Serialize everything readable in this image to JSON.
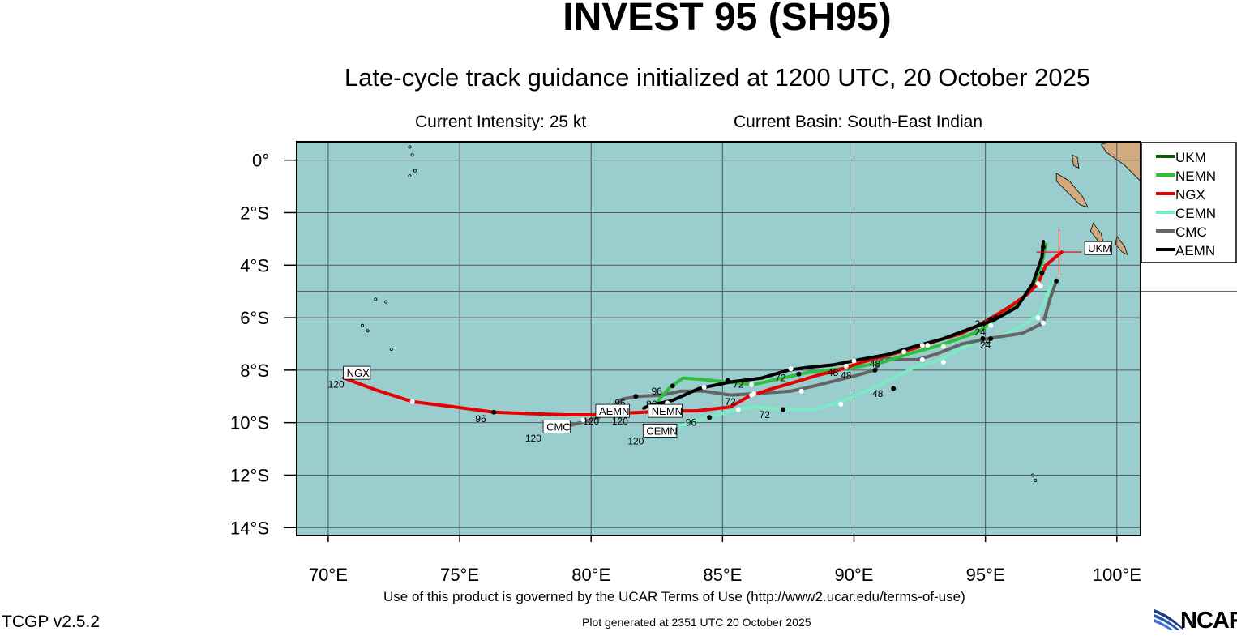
{
  "header": {
    "title": "INVEST 95 (SH95)",
    "subtitle": "Late-cycle track guidance initialized at 1200 UTC, 20 October 2025",
    "intensity": "Current Intensity: 25 kt",
    "basin": "Current Basin: South-East Indian"
  },
  "footer": {
    "terms": "Use of this product is governed by the UCAR Terms of Use (http://www2.ucar.edu/terms-of-use)",
    "generated": "Plot generated at 2351 UTC   20 October 2025",
    "version": "TCGP v2.5.2",
    "logo": "NCAR"
  },
  "chart_data": {
    "type": "map-tracks",
    "xlim": [
      68.8,
      100.9
    ],
    "ylim": [
      -14.3,
      0.7
    ],
    "x_ticks": [
      {
        "value": 70,
        "label": "70°E"
      },
      {
        "value": 75,
        "label": "75°E"
      },
      {
        "value": 80,
        "label": "80°E"
      },
      {
        "value": 85,
        "label": "85°E"
      },
      {
        "value": 90,
        "label": "90°E"
      },
      {
        "value": 95,
        "label": "95°E"
      },
      {
        "value": 100,
        "label": "100°E"
      }
    ],
    "y_ticks": [
      {
        "value": 0,
        "label": "0°"
      },
      {
        "value": -2,
        "label": "2°S"
      },
      {
        "value": -4,
        "label": "4°S"
      },
      {
        "value": -6,
        "label": "6°S"
      },
      {
        "value": -8,
        "label": "8°S"
      },
      {
        "value": -10,
        "label": "10°S"
      },
      {
        "value": -12,
        "label": "12°S"
      },
      {
        "value": -14,
        "label": "14°S"
      }
    ],
    "grid": true,
    "legend_position": "top-right",
    "current_position": {
      "lon": 97.8,
      "lat": -3.5
    },
    "colors": {
      "ocean": "#99cdce",
      "land": "#d1aa7f",
      "grid": "#555555",
      "UKM": "#0a5a0a",
      "NEMN": "#2fbf3b",
      "NGX": "#e60000",
      "CEMN": "#7deac6",
      "CMC": "#646464",
      "AEMN": "#000000"
    },
    "series": [
      {
        "name": "UKM",
        "color_key": "UKM",
        "points": [
          [
            97.8,
            -3.5
          ]
        ],
        "hour_labels": [],
        "end_label": {
          "lon": 98.9,
          "lat": -3.35,
          "text": "UKM"
        }
      },
      {
        "name": "NEMN",
        "color_key": "NEMN",
        "points": [
          [
            97.3,
            -3.2
          ],
          [
            97.15,
            -3.9
          ],
          [
            96.9,
            -4.6
          ],
          [
            96.4,
            -5.3
          ],
          [
            95.6,
            -5.9
          ],
          [
            94.8,
            -6.5
          ],
          [
            94.0,
            -6.8
          ],
          [
            93.1,
            -7.1
          ],
          [
            92.0,
            -7.4
          ],
          [
            91.1,
            -7.7
          ],
          [
            90.0,
            -7.9
          ],
          [
            89.0,
            -8.0
          ],
          [
            88.2,
            -8.1
          ],
          [
            87.3,
            -8.3
          ],
          [
            86.2,
            -8.55
          ],
          [
            85.1,
            -8.45
          ],
          [
            84.2,
            -8.35
          ],
          [
            83.5,
            -8.3
          ],
          [
            83.0,
            -8.65
          ],
          [
            82.6,
            -9.1
          ],
          [
            82.4,
            -9.5
          ],
          [
            82.3,
            -9.75
          ]
        ],
        "dots": [
          [
            97.2,
            -3.3
          ],
          [
            95.2,
            -6.3
          ],
          [
            92.8,
            -7.05
          ],
          [
            89.7,
            -7.85
          ],
          [
            87.9,
            -8.15
          ],
          [
            86.1,
            -8.55
          ],
          [
            83.1,
            -8.6
          ],
          [
            82.4,
            -9.5
          ]
        ],
        "dot_colors": [
          "#000",
          "#fff",
          "#fff",
          "#fff",
          "#000",
          "#fff",
          "#000",
          "#fff"
        ],
        "hour_labels": [
          {
            "lon": 94.8,
            "lat": -6.55,
            "text": "24"
          },
          {
            "lon": 87.2,
            "lat": -8.3,
            "text": "72"
          },
          {
            "lon": 82.5,
            "lat": -8.8,
            "text": "96"
          }
        ],
        "end_label": {
          "lon": 82.3,
          "lat": -9.55,
          "text": "NEMN"
        },
        "end_hour": {
          "lon": 81.1,
          "lat": -9.95,
          "text": "120"
        }
      },
      {
        "name": "NGX",
        "color_key": "NGX",
        "points": [
          [
            97.9,
            -3.5
          ],
          [
            97.3,
            -4.0
          ],
          [
            97.0,
            -4.7
          ],
          [
            96.6,
            -5.1
          ],
          [
            95.9,
            -5.6
          ],
          [
            94.9,
            -6.2
          ],
          [
            94.1,
            -6.6
          ],
          [
            93.1,
            -6.9
          ],
          [
            92.2,
            -7.2
          ],
          [
            91.2,
            -7.45
          ],
          [
            90.3,
            -7.7
          ],
          [
            89.4,
            -8.0
          ],
          [
            88.6,
            -8.2
          ],
          [
            87.6,
            -8.5
          ],
          [
            86.9,
            -8.7
          ],
          [
            86.0,
            -9.0
          ],
          [
            85.3,
            -9.4
          ],
          [
            84.0,
            -9.55
          ],
          [
            83.0,
            -9.55
          ],
          [
            82.0,
            -9.6
          ],
          [
            81.0,
            -9.65
          ],
          [
            80.1,
            -9.7
          ],
          [
            79.0,
            -9.7
          ],
          [
            77.5,
            -9.65
          ],
          [
            76.3,
            -9.6
          ],
          [
            74.8,
            -9.4
          ],
          [
            73.2,
            -9.2
          ],
          [
            71.8,
            -8.75
          ],
          [
            70.6,
            -8.3
          ]
        ],
        "dots": [
          [
            97.0,
            -4.7
          ],
          [
            95.2,
            -6.05
          ],
          [
            91.9,
            -7.3
          ],
          [
            86.1,
            -8.95
          ],
          [
            83.0,
            -9.55
          ],
          [
            76.3,
            -9.6
          ],
          [
            73.2,
            -9.2
          ]
        ],
        "dot_colors": [
          "#fff",
          "#000",
          "#fff",
          "#fff",
          "#000",
          "#000",
          "#fff"
        ],
        "hour_labels": [
          {
            "lon": 89.2,
            "lat": -8.1,
            "text": "48"
          },
          {
            "lon": 85.3,
            "lat": -9.2,
            "text": "72"
          },
          {
            "lon": 75.8,
            "lat": -9.85,
            "text": "96"
          }
        ],
        "end_label": {
          "lon": 70.7,
          "lat": -8.1,
          "text": "NGX"
        },
        "end_hour": {
          "lon": 70.3,
          "lat": -8.55,
          "text": "120"
        }
      },
      {
        "name": "CEMN",
        "color_key": "CEMN",
        "points": [
          [
            97.55,
            -4.6
          ],
          [
            97.3,
            -5.3
          ],
          [
            97.0,
            -5.9
          ],
          [
            96.4,
            -6.3
          ],
          [
            95.5,
            -6.75
          ],
          [
            94.8,
            -6.9
          ],
          [
            94.0,
            -7.2
          ],
          [
            93.3,
            -7.6
          ],
          [
            92.3,
            -7.9
          ],
          [
            91.5,
            -8.3
          ],
          [
            90.7,
            -8.7
          ],
          [
            89.5,
            -9.2
          ],
          [
            88.5,
            -9.5
          ],
          [
            87.3,
            -9.5
          ],
          [
            86.2,
            -9.4
          ],
          [
            85.6,
            -9.5
          ],
          [
            84.8,
            -9.7
          ],
          [
            83.9,
            -9.95
          ],
          [
            83.2,
            -10.2
          ],
          [
            82.5,
            -10.35
          ],
          [
            82.3,
            -10.4
          ]
        ],
        "dots": [
          [
            97.1,
            -4.8
          ],
          [
            97.0,
            -6.0
          ],
          [
            94.9,
            -6.8
          ],
          [
            93.4,
            -7.7
          ],
          [
            91.5,
            -8.7
          ],
          [
            89.5,
            -9.3
          ],
          [
            87.3,
            -9.5
          ],
          [
            85.6,
            -9.5
          ],
          [
            84.5,
            -9.8
          ],
          [
            83.1,
            -10.2
          ]
        ],
        "dot_colors": [
          "#fff",
          "#fff",
          "#000",
          "#fff",
          "#000",
          "#fff",
          "#000",
          "#fff",
          "#000",
          "#fff"
        ],
        "hour_labels": [
          {
            "lon": 95.0,
            "lat": -7.05,
            "text": "24"
          },
          {
            "lon": 90.9,
            "lat": -8.9,
            "text": "48"
          },
          {
            "lon": 86.6,
            "lat": -9.7,
            "text": "72"
          },
          {
            "lon": 83.8,
            "lat": -10.0,
            "text": "96"
          }
        ],
        "end_label": {
          "lon": 82.1,
          "lat": -10.3,
          "text": "CEMN"
        },
        "end_hour": {
          "lon": 81.7,
          "lat": -10.7,
          "text": "120"
        }
      },
      {
        "name": "CMC",
        "color_key": "CMC",
        "points": [
          [
            97.7,
            -4.6
          ],
          [
            97.45,
            -5.3
          ],
          [
            97.2,
            -6.2
          ],
          [
            96.4,
            -6.6
          ],
          [
            95.7,
            -6.7
          ],
          [
            95.1,
            -6.8
          ],
          [
            94.1,
            -7.0
          ],
          [
            93.1,
            -7.4
          ],
          [
            92.4,
            -7.6
          ],
          [
            91.6,
            -7.6
          ],
          [
            91.1,
            -7.5
          ],
          [
            90.8,
            -8.0
          ],
          [
            90.1,
            -8.2
          ],
          [
            89.3,
            -8.4
          ],
          [
            88.5,
            -8.6
          ],
          [
            87.6,
            -8.8
          ],
          [
            86.2,
            -8.9
          ],
          [
            85.3,
            -8.95
          ],
          [
            84.3,
            -8.8
          ],
          [
            83.4,
            -8.8
          ],
          [
            82.7,
            -8.95
          ],
          [
            81.8,
            -9.0
          ],
          [
            81.2,
            -9.1
          ],
          [
            80.8,
            -9.4
          ],
          [
            80.3,
            -9.8
          ],
          [
            79.6,
            -10.0
          ],
          [
            78.8,
            -10.2
          ],
          [
            78.3,
            -10.3
          ]
        ],
        "dots": [
          [
            97.7,
            -4.6
          ],
          [
            97.2,
            -6.2
          ],
          [
            95.2,
            -6.8
          ],
          [
            93.4,
            -7.1
          ],
          [
            92.6,
            -7.6
          ],
          [
            90.8,
            -8.0
          ],
          [
            88.0,
            -8.8
          ],
          [
            86.2,
            -8.9
          ],
          [
            81.7,
            -9.0
          ],
          [
            79.7,
            -9.9
          ]
        ],
        "dot_colors": [
          "#000",
          "#fff",
          "#000",
          "#fff",
          "#fff",
          "#000",
          "#fff",
          "#fff",
          "#000",
          "#fff"
        ],
        "hour_labels": [
          {
            "lon": 95.0,
            "lat": -6.9,
            "text": "24"
          },
          {
            "lon": 89.7,
            "lat": -8.2,
            "text": "48"
          },
          {
            "lon": 81.1,
            "lat": -9.25,
            "text": "96"
          }
        ],
        "end_label": {
          "lon": 78.3,
          "lat": -10.15,
          "text": "CMC"
        },
        "end_hour": {
          "lon": 77.8,
          "lat": -10.6,
          "text": "120"
        }
      },
      {
        "name": "AEMN",
        "color_key": "AEMN",
        "points": [
          [
            97.2,
            -3.1
          ],
          [
            97.15,
            -3.7
          ],
          [
            96.8,
            -4.7
          ],
          [
            96.2,
            -5.6
          ],
          [
            95.3,
            -6.1
          ],
          [
            94.2,
            -6.5
          ],
          [
            93.4,
            -6.8
          ],
          [
            92.3,
            -7.1
          ],
          [
            91.3,
            -7.4
          ],
          [
            90.2,
            -7.6
          ],
          [
            89.2,
            -7.8
          ],
          [
            88.2,
            -7.9
          ],
          [
            87.5,
            -8.0
          ],
          [
            86.5,
            -8.3
          ],
          [
            85.3,
            -8.45
          ],
          [
            84.1,
            -8.7
          ],
          [
            83.1,
            -9.15
          ],
          [
            82.2,
            -9.35
          ],
          [
            82.0,
            -9.45
          ]
        ],
        "dots": [
          [
            97.15,
            -4.3
          ],
          [
            95.4,
            -6.0
          ],
          [
            92.6,
            -7.05
          ],
          [
            90.0,
            -7.65
          ],
          [
            87.6,
            -7.95
          ],
          [
            85.2,
            -8.4
          ],
          [
            84.3,
            -8.65
          ],
          [
            82.9,
            -9.25
          ],
          [
            82.3,
            -9.35
          ]
        ],
        "dot_colors": [
          "#000",
          "#000",
          "#fff",
          "#fff",
          "#fff",
          "#000",
          "#fff",
          "#fff",
          "#000"
        ],
        "hour_labels": [
          {
            "lon": 94.8,
            "lat": -6.25,
            "text": "24"
          },
          {
            "lon": 90.8,
            "lat": -7.75,
            "text": "48"
          },
          {
            "lon": 85.6,
            "lat": -8.55,
            "text": "72"
          },
          {
            "lon": 82.3,
            "lat": -9.3,
            "text": "96"
          }
        ],
        "end_label": {
          "lon": 80.3,
          "lat": -9.55,
          "text": "AEMN"
        },
        "end_hour": {
          "lon": 80.0,
          "lat": -9.95,
          "text": "120"
        }
      }
    ],
    "land": [
      [
        [
          99.8,
          0.7
        ],
        [
          100.9,
          0.7
        ],
        [
          100.9,
          -0.8
        ],
        [
          100.3,
          -0.2
        ],
        [
          99.6,
          0.3
        ],
        [
          99.4,
          0.6
        ]
      ],
      [
        [
          97.7,
          -0.5
        ],
        [
          98.2,
          -0.8
        ],
        [
          98.7,
          -1.4
        ],
        [
          98.9,
          -1.8
        ],
        [
          98.6,
          -1.7
        ],
        [
          98.1,
          -1.2
        ],
        [
          97.7,
          -0.8
        ]
      ],
      [
        [
          99.1,
          -2.4
        ],
        [
          99.4,
          -2.8
        ],
        [
          99.5,
          -3.2
        ],
        [
          99.3,
          -3.1
        ],
        [
          99.0,
          -2.7
        ]
      ],
      [
        [
          100.0,
          -2.9
        ],
        [
          100.3,
          -3.3
        ],
        [
          100.4,
          -3.6
        ],
        [
          100.2,
          -3.5
        ],
        [
          99.95,
          -3.2
        ]
      ],
      [
        [
          98.3,
          0.2
        ],
        [
          98.5,
          0.1
        ],
        [
          98.55,
          -0.3
        ],
        [
          98.35,
          -0.2
        ]
      ]
    ],
    "islands": [
      [
        73.1,
        0.5
      ],
      [
        73.2,
        0.2
      ],
      [
        73.1,
        -0.6
      ],
      [
        73.3,
        -0.4
      ],
      [
        71.8,
        -5.3
      ],
      [
        72.2,
        -5.4
      ],
      [
        71.3,
        -6.3
      ],
      [
        71.5,
        -6.5
      ],
      [
        72.4,
        -7.2
      ],
      [
        96.8,
        -12.0
      ],
      [
        96.9,
        -12.2
      ]
    ],
    "lat_line_5s": -5
  },
  "legend": [
    {
      "name": "UKM",
      "color_key": "UKM"
    },
    {
      "name": "NEMN",
      "color_key": "NEMN"
    },
    {
      "name": "NGX",
      "color_key": "NGX"
    },
    {
      "name": "CEMN",
      "color_key": "CEMN"
    },
    {
      "name": "CMC",
      "color_key": "CMC"
    },
    {
      "name": "AEMN",
      "color_key": "AEMN"
    }
  ]
}
